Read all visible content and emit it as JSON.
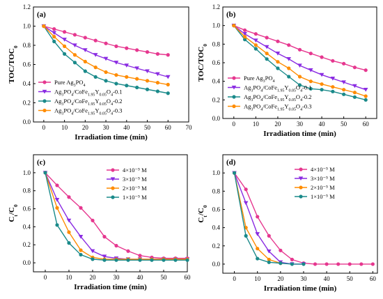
{
  "chart_data": [
    {
      "type": "line",
      "panel_label": "(a)",
      "xlabel": "Irradiation time (min)",
      "ylabel_html": "TOC/TOC<tspan baseline-shift='sub' font-size='8'>0</tspan>",
      "ylabel": "TOC/TOC0",
      "xlim": [
        -5,
        70
      ],
      "ylim": [
        0,
        1.2
      ],
      "xticks": [
        0,
        10,
        20,
        30,
        40,
        50,
        60,
        70
      ],
      "yticks": [
        0.0,
        0.2,
        0.4,
        0.6,
        0.8,
        1.0,
        1.2
      ],
      "ytick_decimals": 1,
      "legend_position": "bottom-left",
      "series": [
        {
          "name": "Pure Ag3PO4",
          "color": "#e6378f",
          "marker": "circle",
          "x": [
            0,
            5,
            10,
            15,
            20,
            25,
            30,
            35,
            40,
            45,
            50,
            55,
            60
          ],
          "y": [
            1.0,
            0.97,
            0.94,
            0.91,
            0.88,
            0.85,
            0.82,
            0.79,
            0.77,
            0.75,
            0.73,
            0.71,
            0.7
          ]
        },
        {
          "name": "Ag3PO4/CoFe1.95Y0.05O4-0.1",
          "color": "#8a2be2",
          "marker": "triangle-down",
          "x": [
            0,
            5,
            10,
            15,
            20,
            25,
            30,
            35,
            40,
            45,
            50,
            55,
            60
          ],
          "y": [
            1.0,
            0.93,
            0.86,
            0.8,
            0.75,
            0.7,
            0.66,
            0.62,
            0.59,
            0.56,
            0.53,
            0.5,
            0.47
          ]
        },
        {
          "name": "Ag3PO4/CoFe1.95Y0.05O4-0.2",
          "color": "#1a8a8a",
          "marker": "circle",
          "x": [
            0,
            5,
            10,
            15,
            20,
            25,
            30,
            35,
            40,
            45,
            50,
            55,
            60
          ],
          "y": [
            1.0,
            0.84,
            0.71,
            0.62,
            0.53,
            0.47,
            0.43,
            0.4,
            0.38,
            0.36,
            0.34,
            0.32,
            0.3
          ]
        },
        {
          "name": "Ag3PO4/CoFe1.95Y0.05O4-0.3",
          "color": "#ff8c00",
          "marker": "circle",
          "x": [
            0,
            5,
            10,
            15,
            20,
            25,
            30,
            35,
            40,
            45,
            50,
            55,
            60
          ],
          "y": [
            1.0,
            0.89,
            0.79,
            0.7,
            0.63,
            0.57,
            0.52,
            0.49,
            0.47,
            0.45,
            0.43,
            0.41,
            0.39
          ]
        }
      ]
    },
    {
      "type": "line",
      "panel_label": "(b)",
      "xlabel": "Irradiation time (min)",
      "ylabel": "TOC/TOC0",
      "xlim": [
        -5,
        65
      ],
      "ylim": [
        0,
        1.2
      ],
      "xticks": [
        0,
        10,
        20,
        30,
        40,
        50,
        60
      ],
      "yticks": [
        0.0,
        0.2,
        0.4,
        0.6,
        0.8,
        1.0,
        1.2
      ],
      "ytick_decimals": 1,
      "legend_position": "bottom-left",
      "series": [
        {
          "name": "Pure Ag3PO4",
          "color": "#e6378f",
          "marker": "circle",
          "x": [
            0,
            5,
            10,
            15,
            20,
            25,
            30,
            35,
            40,
            45,
            50,
            55,
            60
          ],
          "y": [
            1.0,
            0.95,
            0.91,
            0.87,
            0.83,
            0.79,
            0.74,
            0.7,
            0.66,
            0.62,
            0.59,
            0.55,
            0.52
          ]
        },
        {
          "name": "Ag3PO4/CoFe1.95Y0.05O4-0.1",
          "color": "#8a2be2",
          "marker": "triangle-down",
          "x": [
            0,
            5,
            10,
            15,
            20,
            25,
            30,
            35,
            40,
            45,
            50,
            55,
            60
          ],
          "y": [
            1.0,
            0.91,
            0.84,
            0.77,
            0.7,
            0.64,
            0.57,
            0.52,
            0.47,
            0.43,
            0.39,
            0.35,
            0.31
          ]
        },
        {
          "name": "Ag3PO4/CoFe1.95Y0.05O4-0.2",
          "color": "#1a8a8a",
          "marker": "circle",
          "x": [
            0,
            5,
            10,
            15,
            20,
            25,
            30,
            35,
            40,
            45,
            50,
            55,
            60
          ],
          "y": [
            1.0,
            0.85,
            0.75,
            0.64,
            0.54,
            0.45,
            0.36,
            0.32,
            0.31,
            0.29,
            0.26,
            0.23,
            0.2
          ]
        },
        {
          "name": "Ag3PO4/CoFe1.95Y0.05O4-0.3",
          "color": "#ff8c00",
          "marker": "circle",
          "x": [
            0,
            5,
            10,
            15,
            20,
            25,
            30,
            35,
            40,
            45,
            50,
            55,
            60
          ],
          "y": [
            1.0,
            0.88,
            0.79,
            0.7,
            0.61,
            0.54,
            0.45,
            0.4,
            0.37,
            0.34,
            0.31,
            0.28,
            0.24
          ]
        }
      ]
    },
    {
      "type": "line",
      "panel_label": "(c)",
      "xlabel": "Irradiation time (min)",
      "ylabel": "Ct/C0",
      "xlim": [
        -5,
        60
      ],
      "ylim": [
        -0.1,
        1.2
      ],
      "xticks": [
        0,
        10,
        20,
        30,
        40,
        50,
        60
      ],
      "yticks": [
        0.0,
        0.2,
        0.4,
        0.6,
        0.8,
        1.0
      ],
      "ytick_decimals": 1,
      "legend_position": "top-right",
      "series": [
        {
          "name": "4×10⁻⁵ M",
          "color": "#e6378f",
          "marker": "circle",
          "x": [
            0,
            5,
            10,
            15,
            20,
            25,
            30,
            35,
            40,
            45,
            50,
            55,
            60
          ],
          "y": [
            1.0,
            0.86,
            0.73,
            0.61,
            0.47,
            0.29,
            0.19,
            0.13,
            0.08,
            0.06,
            0.05,
            0.05,
            0.05
          ]
        },
        {
          "name": "3×10⁻⁵ M",
          "color": "#8a2be2",
          "marker": "triangle-down",
          "x": [
            0,
            5,
            10,
            15,
            20,
            25,
            30,
            35,
            40,
            45,
            50,
            55,
            60
          ],
          "y": [
            1.0,
            0.7,
            0.47,
            0.29,
            0.13,
            0.07,
            0.05,
            0.04,
            0.04,
            0.04,
            0.04,
            0.04,
            0.04
          ]
        },
        {
          "name": "2×10⁻⁵ M",
          "color": "#ff8c00",
          "marker": "circle",
          "x": [
            0,
            5,
            10,
            15,
            20,
            25,
            30,
            35,
            40,
            45,
            50,
            55,
            60
          ],
          "y": [
            1.0,
            0.61,
            0.34,
            0.14,
            0.06,
            0.04,
            0.04,
            0.04,
            0.04,
            0.04,
            0.04,
            0.04,
            0.04
          ]
        },
        {
          "name": "1×10⁻⁵ M",
          "color": "#1a8a8a",
          "marker": "circle",
          "x": [
            0,
            5,
            10,
            15,
            20,
            25,
            30,
            35,
            40,
            45,
            50,
            55,
            60
          ],
          "y": [
            1.0,
            0.42,
            0.22,
            0.09,
            0.04,
            0.03,
            0.03,
            0.03,
            0.03,
            0.03,
            0.03,
            0.03,
            0.03
          ]
        }
      ]
    },
    {
      "type": "line",
      "panel_label": "(d)",
      "xlabel": "Irradiation time (min)",
      "ylabel": "Ct/C0",
      "xlim": [
        -5,
        62
      ],
      "ylim": [
        -0.1,
        1.2
      ],
      "xticks": [
        0,
        10,
        20,
        30,
        40,
        50,
        60
      ],
      "yticks": [
        0.0,
        0.2,
        0.4,
        0.6,
        0.8,
        1.0
      ],
      "ytick_decimals": 1,
      "legend_position": "top-right",
      "series": [
        {
          "name": "4×10⁻⁵ M",
          "color": "#e6378f",
          "marker": "circle",
          "x": [
            0,
            5,
            10,
            15,
            20,
            25,
            30,
            35,
            40,
            45,
            50,
            55,
            60
          ],
          "y": [
            1.0,
            0.82,
            0.52,
            0.31,
            0.15,
            0.05,
            0.01,
            0.0,
            0.0,
            0.0,
            0.0,
            0.0,
            0.0
          ]
        },
        {
          "name": "3×10⁻⁵ M",
          "color": "#8a2be2",
          "marker": "triangle-down",
          "x": [
            0,
            5,
            10,
            15,
            20,
            25,
            30
          ],
          "y": [
            1.0,
            0.67,
            0.33,
            0.14,
            0.02,
            0.0,
            0.0
          ]
        },
        {
          "name": "2×10⁻⁵ M",
          "color": "#ff8c00",
          "marker": "circle",
          "x": [
            0,
            5,
            10,
            15,
            20
          ],
          "y": [
            1.0,
            0.4,
            0.17,
            0.05,
            0.01
          ]
        },
        {
          "name": "1×10⁻⁵ M",
          "color": "#1a8a8a",
          "marker": "circle",
          "x": [
            0,
            5,
            10,
            15,
            20,
            25,
            30
          ],
          "y": [
            1.0,
            0.31,
            0.06,
            0.02,
            0.01,
            0.0,
            0.0
          ]
        }
      ]
    }
  ]
}
